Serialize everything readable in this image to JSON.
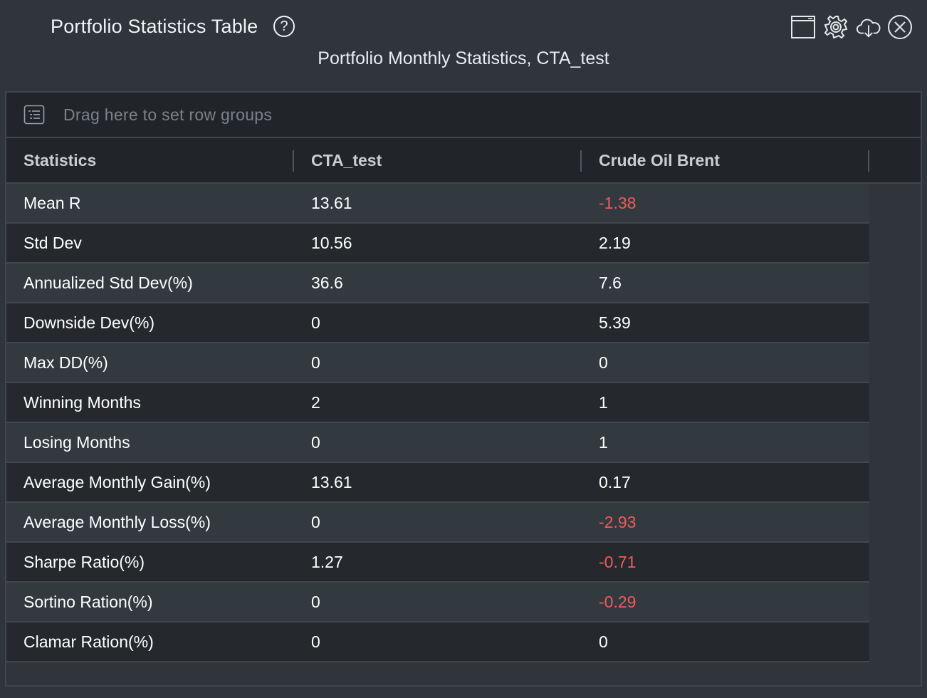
{
  "window": {
    "title": "Portfolio Statistics Table",
    "help_label": "?",
    "subtitle": "Portfolio Monthly Statistics, CTA_test",
    "tools": [
      "window-icon",
      "gear-icon",
      "cloud-download-icon",
      "close-icon"
    ]
  },
  "grid": {
    "group_placeholder": "Drag here to set row groups",
    "columns": [
      "Statistics",
      "CTA_test",
      "Crude Oil Brent"
    ],
    "rows": [
      {
        "stat": "Mean R",
        "cta": "13.61",
        "brent": "-1.38"
      },
      {
        "stat": "Std Dev",
        "cta": "10.56",
        "brent": "2.19"
      },
      {
        "stat": "Annualized Std Dev(%)",
        "cta": "36.6",
        "brent": "7.6"
      },
      {
        "stat": "Downside Dev(%)",
        "cta": "0",
        "brent": "5.39"
      },
      {
        "stat": "Max DD(%)",
        "cta": "0",
        "brent": "0"
      },
      {
        "stat": "Winning Months",
        "cta": "2",
        "brent": "1"
      },
      {
        "stat": "Losing Months",
        "cta": "0",
        "brent": "1"
      },
      {
        "stat": "Average Monthly Gain(%)",
        "cta": "13.61",
        "brent": "0.17"
      },
      {
        "stat": "Average Monthly Loss(%)",
        "cta": "0",
        "brent": "-2.93"
      },
      {
        "stat": "Sharpe Ratio(%)",
        "cta": "1.27",
        "brent": "-0.71"
      },
      {
        "stat": "Sortino Ration(%)",
        "cta": "0",
        "brent": "-0.29"
      },
      {
        "stat": "Clamar Ration(%)",
        "cta": "0",
        "brent": "0"
      }
    ]
  },
  "colors": {
    "negative": "#f05a5a",
    "background": "#2f353b",
    "header_bg": "#212529"
  }
}
